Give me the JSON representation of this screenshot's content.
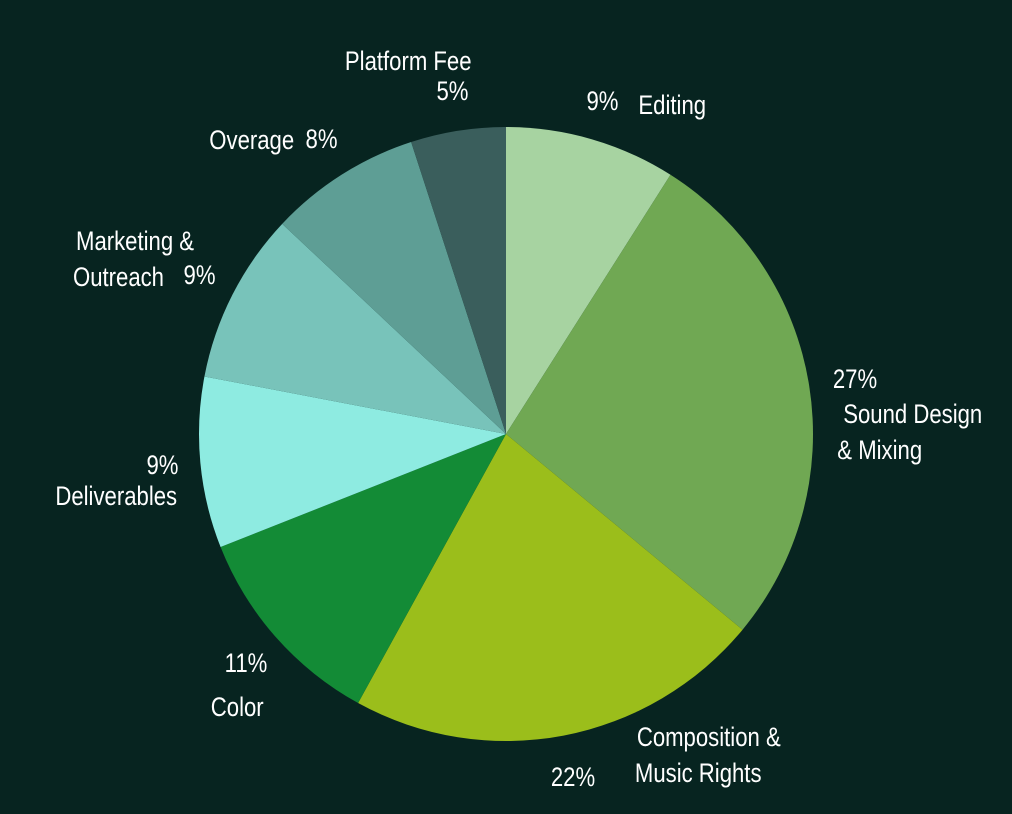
{
  "chart_data": {
    "type": "pie",
    "title": "",
    "start_angle_deg": 0,
    "direction": "clockwise",
    "slices": [
      {
        "label": "Editing",
        "label_lines": [
          "Editing"
        ],
        "value": 9,
        "value_label": "9%",
        "color": "#a7d3a1"
      },
      {
        "label": "Sound Design & Mixing",
        "label_lines": [
          "Sound Design",
          "& Mixing"
        ],
        "value": 27,
        "value_label": "27%",
        "color": "#70a853"
      },
      {
        "label": "Composition & Music Rights",
        "label_lines": [
          "Composition &",
          "Music Rights"
        ],
        "value": 22,
        "value_label": "22%",
        "color": "#9bbe1b"
      },
      {
        "label": "Color",
        "label_lines": [
          "Color"
        ],
        "value": 11,
        "value_label": "11%",
        "color": "#138b36"
      },
      {
        "label": "Deliverables",
        "label_lines": [
          "Deliverables"
        ],
        "value": 9,
        "value_label": "9%",
        "color": "#8eebe1"
      },
      {
        "label": "Marketing & Outreach",
        "label_lines": [
          "Marketing &",
          "Outreach"
        ],
        "value": 9,
        "value_label": "9%",
        "color": "#78c3ba"
      },
      {
        "label": "Overage",
        "label_lines": [
          "Overage"
        ],
        "value": 8,
        "value_label": "8%",
        "color": "#5e9e95"
      },
      {
        "label": "Platform Fee",
        "label_lines": [
          "Platform Fee"
        ],
        "value": 5,
        "value_label": "5%",
        "color": "#3a5e5c"
      }
    ]
  }
}
